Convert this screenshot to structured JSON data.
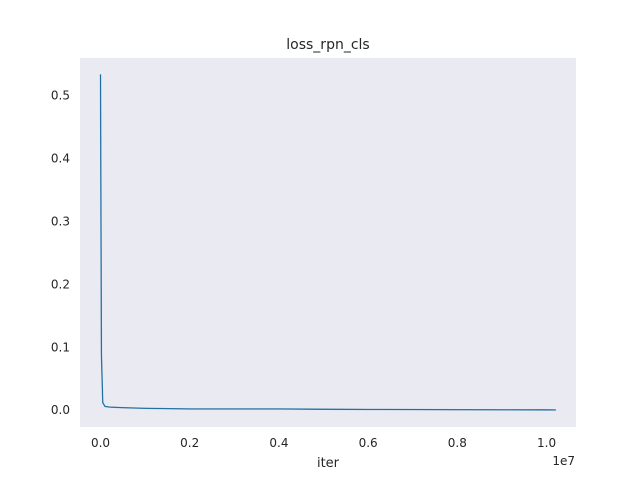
{
  "chart_data": {
    "type": "line",
    "title": "loss_rpn_cls",
    "xlabel": "iter",
    "ylabel": "",
    "x_offset_text": "1e7",
    "x_scale_factor": 10000000,
    "xlim": [
      -460000,
      10660000
    ],
    "ylim": [
      -0.0267,
      0.5597
    ],
    "x_ticks": [
      0,
      2000000,
      4000000,
      6000000,
      8000000,
      10000000
    ],
    "x_tick_labels": [
      "0.0",
      "0.2",
      "0.4",
      "0.6",
      "0.8",
      "1.0"
    ],
    "y_ticks": [
      0.0,
      0.1,
      0.2,
      0.3,
      0.4,
      0.5
    ],
    "y_tick_labels": [
      "0.0",
      "0.1",
      "0.2",
      "0.3",
      "0.4",
      "0.5"
    ],
    "grid": false,
    "legend": "none",
    "colors": {
      "plot_background": "#eaeaf2",
      "line": "#1f77b4",
      "line_dark": "#0b5f8f"
    },
    "series": [
      {
        "x": [
          0,
          20000,
          50000,
          100000,
          200000,
          500000,
          1000000,
          2000000,
          3000000,
          4000000,
          5000000,
          6000000,
          7000000,
          8000000,
          9000000,
          10000000,
          10200000
        ],
        "y": [
          0.533,
          0.09,
          0.012,
          0.006,
          0.005,
          0.004,
          0.003,
          0.002,
          0.002,
          0.002,
          0.0015,
          0.0012,
          0.001,
          0.0008,
          0.0006,
          0.0005,
          0.0004
        ]
      }
    ]
  }
}
